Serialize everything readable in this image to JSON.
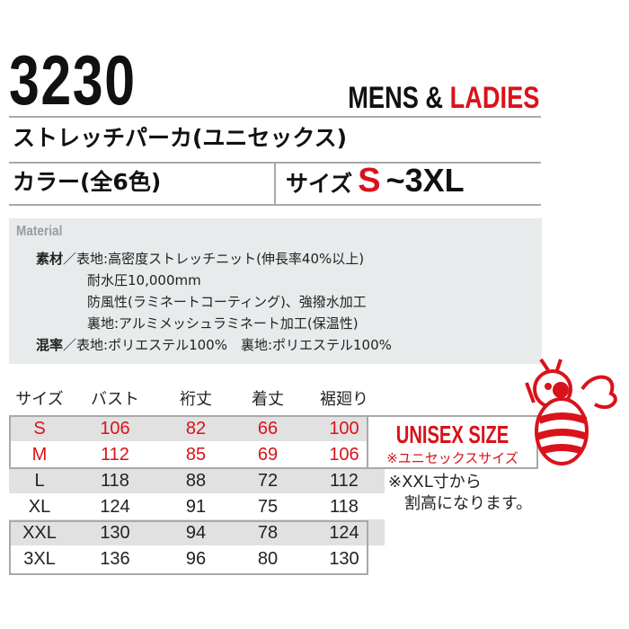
{
  "header": {
    "model": "3230",
    "gender_prefix": "MENS & ",
    "gender_red": "LADIES"
  },
  "product_name": "ストレッチパーカ(ユニセックス)",
  "color_label": "カラー(全6色)",
  "size": {
    "label": "サイズ",
    "min": "S",
    "range": "~3XL"
  },
  "material": {
    "title": "Material",
    "lines": [
      {
        "key": "素材",
        "text": "／表地:高密度ストレッチニット(伸長率40%以上)"
      },
      {
        "key": "",
        "text": "耐水圧10,000mm"
      },
      {
        "key": "",
        "text": "防風性(ラミネートコーティング)、強撥水加工"
      },
      {
        "key": "",
        "text": "裏地:アルミメッシュラミネート加工(保温性)"
      },
      {
        "key": "混率",
        "text": "／表地:ポリエステル100%　裏地:ポリエステル100%"
      }
    ]
  },
  "size_table": {
    "headers": [
      "サイズ",
      "バスト",
      "裄丈",
      "着丈",
      "裾廻り"
    ],
    "rows": [
      [
        "S",
        "106",
        "82",
        "66",
        "100"
      ],
      [
        "M",
        "112",
        "85",
        "69",
        "106"
      ],
      [
        "L",
        "118",
        "88",
        "72",
        "112"
      ],
      [
        "XL",
        "124",
        "91",
        "75",
        "118"
      ],
      [
        "XXL",
        "130",
        "94",
        "78",
        "124"
      ],
      [
        "3XL",
        "136",
        "96",
        "80",
        "130"
      ]
    ]
  },
  "unisex": {
    "title": "UNISEX SIZE",
    "subtitle": "※ユニセックスサイズ"
  },
  "note": [
    "※XXL寸から",
    "　割高になります。"
  ],
  "colors": {
    "accent_red": "#d9121b",
    "panel_gray": "#e8ebec",
    "row_gray": "#e1e1e1"
  },
  "icons": {
    "mascot": "bee-mascot-icon"
  }
}
